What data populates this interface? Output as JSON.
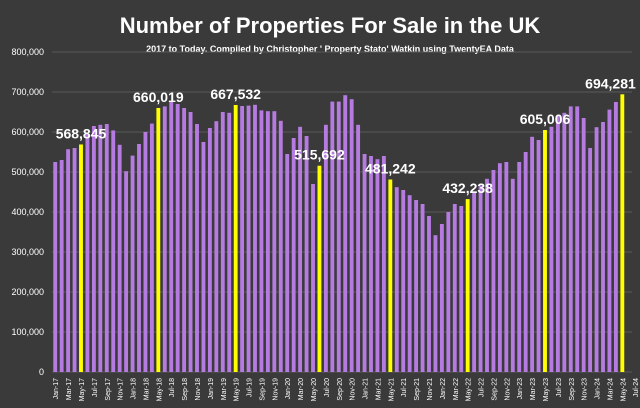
{
  "chart_data": {
    "type": "bar",
    "title": "Number of Properties For Sale in the UK",
    "subtitle": "2017 to Today. Compiled by Christopher ' Property Stato' Watkin using TwentyEA Data",
    "xlabel": "",
    "ylabel": "",
    "ylim": [
      0,
      800000
    ],
    "yticks": [
      0,
      100000,
      200000,
      300000,
      400000,
      500000,
      600000,
      700000,
      800000
    ],
    "ytick_labels": [
      "0",
      "100,000",
      "200,000",
      "300,000",
      "400,000",
      "500,000",
      "600,000",
      "700,000",
      "800,000"
    ],
    "grid": true,
    "colors": {
      "bar": "#b57be0",
      "highlight": "#ffff00",
      "background": "#3a3a3a",
      "grid": "#5a5a5a",
      "text": "#ffffff"
    },
    "categories": [
      "Jan-17",
      "Feb-17",
      "Mar-17",
      "Apr-17",
      "May-17",
      "Jun-17",
      "Jul-17",
      "Aug-17",
      "Sep-17",
      "Oct-17",
      "Nov-17",
      "Dec-17",
      "Jan-18",
      "Feb-18",
      "Mar-18",
      "Apr-18",
      "May-18",
      "Jun-18",
      "Jul-18",
      "Aug-18",
      "Sep-18",
      "Oct-18",
      "Nov-18",
      "Dec-18",
      "Jan-19",
      "Feb-19",
      "Mar-19",
      "Apr-19",
      "May-19",
      "Jun-19",
      "Jul-19",
      "Aug-19",
      "Sep-19",
      "Oct-19",
      "Nov-19",
      "Dec-19",
      "Jan-20",
      "Feb-20",
      "Mar-20",
      "Apr-20",
      "May-20",
      "Jun-20",
      "Jul-20",
      "Aug-20",
      "Sep-20",
      "Oct-20",
      "Nov-20",
      "Dec-20",
      "Jan-21",
      "Feb-21",
      "Mar-21",
      "Apr-21",
      "May-21",
      "Jun-21",
      "Jul-21",
      "Aug-21",
      "Sep-21",
      "Oct-21",
      "Nov-21",
      "Dec-21",
      "Jan-22",
      "Feb-22",
      "Mar-22",
      "Apr-22",
      "May-22",
      "Jun-22",
      "Jul-22",
      "Aug-22",
      "Sep-22",
      "Oct-22",
      "Nov-22",
      "Dec-22",
      "Jan-23",
      "Feb-23",
      "Mar-23",
      "Apr-23",
      "May-23",
      "Jun-23",
      "Jul-23",
      "Aug-23",
      "Sep-23",
      "Oct-23",
      "Nov-23",
      "Dec-23",
      "Jan-24",
      "Feb-24",
      "Mar-24",
      "Apr-24",
      "May-24"
    ],
    "tick_labels": [
      "Jan-17",
      "Mar-17",
      "May-17",
      "Jul-17",
      "Sep-17",
      "Nov-17",
      "Jan-18",
      "Mar-18",
      "May-18",
      "Jul-18",
      "Sep-18",
      "Nov-18",
      "Jan-19",
      "Mar-19",
      "May-19",
      "Jul-19",
      "Sep-19",
      "Nov-19",
      "Jan-20",
      "Mar-20",
      "May-20",
      "Jul-20",
      "Sep-20",
      "Nov-20",
      "Jan-21",
      "Mar-21",
      "May-21",
      "Jul-21",
      "Sep-21",
      "Nov-21",
      "Jan-22",
      "Mar-22",
      "May-22",
      "Jul-22",
      "Sep-22",
      "Nov-22",
      "Jan-23",
      "Mar-23",
      "May-23",
      "Jul-23",
      "Sep-23",
      "Nov-23",
      "Jan-24",
      "Mar-24",
      "May-24",
      "Jul-24"
    ],
    "values": [
      525000,
      530000,
      557000,
      560000,
      568845,
      595000,
      615000,
      618000,
      620000,
      604000,
      568000,
      502000,
      541000,
      570000,
      600000,
      621000,
      660019,
      664000,
      675000,
      670000,
      660000,
      650000,
      620000,
      575000,
      610000,
      627000,
      650000,
      648000,
      667532,
      665000,
      666000,
      668000,
      654000,
      652000,
      652000,
      628000,
      545000,
      585000,
      613000,
      590000,
      470000,
      515692,
      618000,
      676000,
      676000,
      692000,
      682000,
      618000,
      545000,
      540000,
      532000,
      540000,
      481242,
      462000,
      455000,
      442000,
      430000,
      420000,
      390000,
      342000,
      370000,
      400000,
      420000,
      415000,
      432238,
      448000,
      466000,
      483000,
      505000,
      522000,
      525000,
      483000,
      525000,
      550000,
      588000,
      580000,
      605006,
      613000,
      640000,
      648000,
      664000,
      664000,
      635000,
      560000,
      612000,
      625000,
      656000,
      675000,
      694281
    ],
    "highlighted": [
      {
        "category": "May-17",
        "value": 568845,
        "label": "568,845"
      },
      {
        "category": "May-18",
        "value": 660019,
        "label": "660,019"
      },
      {
        "category": "May-19",
        "value": 667532,
        "label": "667,532"
      },
      {
        "category": "Jun-20",
        "value": 515692,
        "label": "515,692"
      },
      {
        "category": "May-21",
        "value": 481242,
        "label": "481,242"
      },
      {
        "category": "May-22",
        "value": 432238,
        "label": "432,238"
      },
      {
        "category": "May-23",
        "value": 605006,
        "label": "605,006"
      },
      {
        "category": "May-24",
        "value": 694281,
        "label": "694,281"
      }
    ]
  }
}
